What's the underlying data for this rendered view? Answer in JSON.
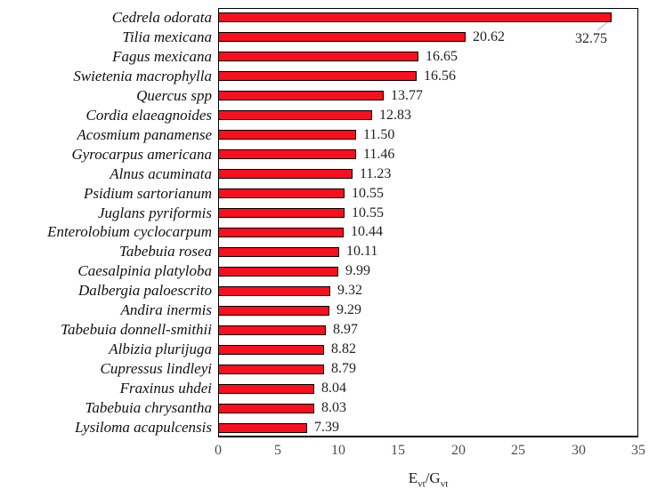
{
  "chart_data": {
    "type": "bar",
    "orientation": "horizontal",
    "title": "",
    "xlabel": "Evt/Gvt",
    "xlabel_parts": {
      "p1": "E",
      "p2": "vt",
      "p3": "/G",
      "p4": "vt"
    },
    "ylabel": "",
    "categories": [
      "Cedrela odorata",
      "Tilia mexicana",
      "Fagus mexicana",
      "Swietenia macrophylla",
      "Quercus spp",
      "Cordia elaeagnoides",
      "Acosmium panamense",
      "Gyrocarpus americana",
      "Alnus acuminata",
      "Psidium sartorianum",
      "Juglans pyriformis",
      "Enterolobium cyclocarpum",
      "Tabebuia rosea",
      "Caesalpinia platyloba",
      "Dalbergia paloescrito",
      "Andira inermis",
      "Tabebuia donnell-smithii",
      "Albizia plurijuga",
      "Cupressus lindleyi",
      "Fraxinus uhdei",
      "Tabebuia chrysantha",
      "Lysiloma acapulcensis"
    ],
    "values": [
      32.75,
      20.62,
      16.65,
      16.56,
      13.77,
      12.83,
      11.5,
      11.46,
      11.23,
      10.55,
      10.55,
      10.44,
      10.11,
      9.99,
      9.32,
      9.29,
      8.97,
      8.82,
      8.79,
      8.04,
      8.03,
      7.39
    ],
    "value_label_format_decimals": 2,
    "xlim": [
      0,
      35
    ],
    "x_ticks": [
      "0",
      "5",
      "10",
      "15",
      "20",
      "25",
      "30",
      "35"
    ],
    "grid": "off",
    "legend": "none",
    "first_value_label_uses_leader_line": true,
    "colors": {
      "bar_fill": "#fa0f1e",
      "bar_border": "#000000",
      "plot_border": "#000000",
      "species_text": "#111111",
      "value_text": "#222222",
      "tick_text": "#4d4d4d",
      "axis_label_text": "#1a1a1a",
      "leader_line": "#b0b0b0",
      "background": "#ffffff"
    }
  }
}
